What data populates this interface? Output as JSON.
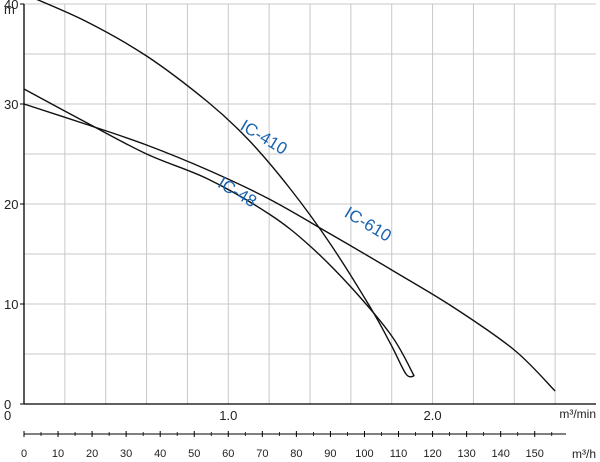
{
  "chart_data": {
    "type": "line",
    "ylabel": "m",
    "xlabel": "m³/min",
    "x2label": "m³/h",
    "ylim": [
      0,
      40
    ],
    "xlim": [
      0,
      2.8
    ],
    "x2lim": [
      0,
      160
    ],
    "yticks": [
      {
        "value": 0,
        "label": "0"
      },
      {
        "value": 10,
        "label": "10"
      },
      {
        "value": 20,
        "label": "20"
      },
      {
        "value": 30,
        "label": "30"
      },
      {
        "value": 40,
        "label": "40"
      }
    ],
    "xticks": [
      {
        "value": 0,
        "label": "0"
      },
      {
        "value": 1.0,
        "label": "1.0"
      },
      {
        "value": 2.0,
        "label": "2.0"
      }
    ],
    "x2ticks": [
      {
        "value": 0,
        "label": "0"
      },
      {
        "value": 10,
        "label": "10"
      },
      {
        "value": 20,
        "label": "20"
      },
      {
        "value": 30,
        "label": "30"
      },
      {
        "value": 40,
        "label": "40"
      },
      {
        "value": 50,
        "label": "50"
      },
      {
        "value": 60,
        "label": "60"
      },
      {
        "value": 70,
        "label": "70"
      },
      {
        "value": 80,
        "label": "80"
      },
      {
        "value": 90,
        "label": "90"
      },
      {
        "value": 100,
        "label": "100"
      },
      {
        "value": 110,
        "label": "110"
      },
      {
        "value": 120,
        "label": "120"
      },
      {
        "value": 130,
        "label": "130"
      },
      {
        "value": 140,
        "label": "140"
      },
      {
        "value": 150,
        "label": "150"
      }
    ],
    "grid": true,
    "series": [
      {
        "name": "IC-410",
        "x": [
          0,
          0.3,
          0.6,
          0.9,
          1.1,
          1.3,
          1.5,
          1.7,
          1.8,
          1.87,
          1.91
        ],
        "y": [
          41.0,
          38.3,
          34.8,
          30.2,
          26.4,
          21.6,
          16.0,
          9.5,
          5.8,
          3.0,
          2.8
        ]
      },
      {
        "name": "IC-48",
        "x": [
          0,
          0.3,
          0.6,
          0.9,
          1.2,
          1.4,
          1.6,
          1.8,
          1.91
        ],
        "y": [
          31.5,
          28.2,
          25.0,
          22.5,
          19.0,
          15.8,
          11.7,
          6.8,
          2.8
        ]
      },
      {
        "name": "IC-610",
        "x": [
          0,
          0.3,
          0.6,
          0.9,
          1.2,
          1.5,
          1.8,
          2.1,
          2.4,
          2.6
        ],
        "y": [
          30.0,
          28.0,
          25.9,
          23.4,
          20.5,
          17.0,
          13.4,
          9.7,
          5.4,
          1.3
        ]
      }
    ],
    "annotations": [
      {
        "series": "IC-410",
        "text": "IC-410",
        "x": 1.16,
        "y": 26.2,
        "angle": 31
      },
      {
        "series": "IC-48",
        "text": "IC-48",
        "x": 1.03,
        "y": 20.7,
        "angle": 31
      },
      {
        "series": "IC-610",
        "text": "IC-610",
        "x": 1.67,
        "y": 17.5,
        "angle": 31
      }
    ]
  }
}
